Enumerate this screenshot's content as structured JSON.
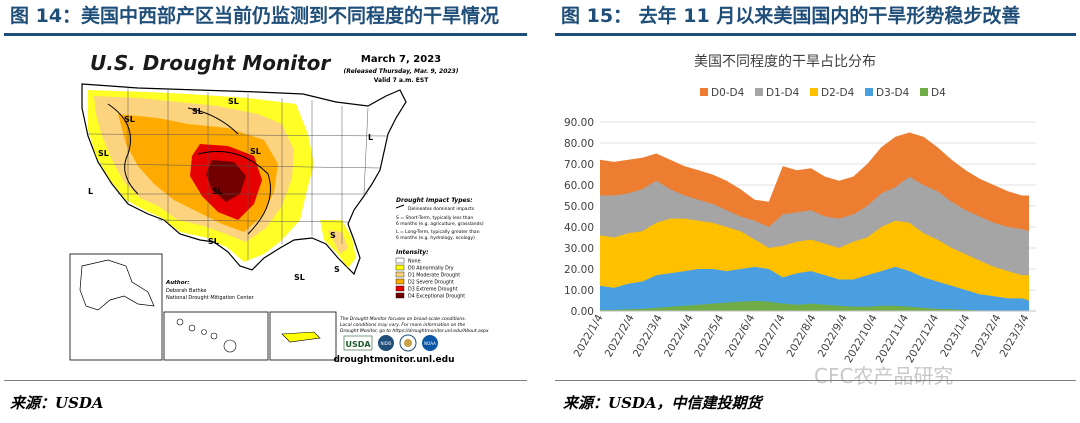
{
  "figure14": {
    "title": "图 14：美国中西部产区当前仍监测到不同程度的干旱情况",
    "source": "来源：USDA",
    "map": {
      "heading": "U.S. Drought Monitor",
      "date": "March 7, 2023",
      "released": "(Released Thursday, Mar. 9, 2023)",
      "valid": "Valid 7 a.m. EST",
      "impact_title": "Drought Impact Types:",
      "impact_items": [
        "Delineates dominant impacts",
        "S = Short-Term, typically less than",
        "6 months (e.g. agriculture, grasslands)",
        "L = Long-Term, typically greater than",
        "6 months (e.g. hydrology, ecology)"
      ],
      "intensity_title": "Intensity:",
      "intensity_items": [
        {
          "label": "None",
          "color": "#ffffff"
        },
        {
          "label": "D0 Abnormally Dry",
          "color": "#ffff00"
        },
        {
          "label": "D1 Moderate Drought",
          "color": "#fcd37f"
        },
        {
          "label": "D2 Severe Drought",
          "color": "#ffaa00"
        },
        {
          "label": "D3 Extreme Drought",
          "color": "#e60000"
        },
        {
          "label": "D4 Exceptional Drought",
          "color": "#730000"
        }
      ],
      "notes": [
        "The Drought Monitor focuses on broad-scale conditions.",
        "Local conditions may vary. For more information on the",
        "Drought Monitor, go to https://droughtmonitor.unl.edu/About.aspx"
      ],
      "author_label": "Author:",
      "author_name": "Deborah Bathke",
      "author_org": "National Drought Mitigation Center",
      "region_labels": [
        "SL",
        "SL",
        "SL",
        "SL",
        "SL",
        "SL",
        "SL",
        "L",
        "S",
        "S",
        "SL",
        "L"
      ],
      "logos": [
        "USDA",
        "NIDIS",
        "NOAA"
      ],
      "website": "droughtmonitor.unl.edu"
    }
  },
  "figure15": {
    "title": "图 15：  去年 11 月以来美国国内的干旱形势稳步改善",
    "source": "来源：USDA，中信建投期货",
    "chart_data": {
      "type": "area",
      "title": "美国不同程度的干旱占比分布",
      "legend_position": "top",
      "grid": true,
      "ylim": [
        0,
        90
      ],
      "yticks": [
        "0.00",
        "10.00",
        "20.00",
        "30.00",
        "40.00",
        "50.00",
        "60.00",
        "70.00",
        "80.00",
        "90.00"
      ],
      "xtick_labels": [
        "2022/1/4",
        "2022/2/4",
        "2022/3/4",
        "2022/4/4",
        "2022/5/4",
        "2022/6/4",
        "2022/7/4",
        "2022/8/4",
        "2022/9/4",
        "2022/10/4",
        "2022/11/4",
        "2022/12/4",
        "2023/1/4",
        "2023/2/4",
        "2023/3/4"
      ],
      "x": [
        "2022-01-04",
        "2022-01-18",
        "2022-02-01",
        "2022-02-15",
        "2022-03-01",
        "2022-03-15",
        "2022-03-29",
        "2022-04-12",
        "2022-04-26",
        "2022-05-10",
        "2022-05-24",
        "2022-06-07",
        "2022-06-21",
        "2022-07-05",
        "2022-07-19",
        "2022-08-02",
        "2022-08-16",
        "2022-08-30",
        "2022-09-13",
        "2022-09-27",
        "2022-10-11",
        "2022-10-25",
        "2022-11-08",
        "2022-11-22",
        "2022-12-06",
        "2022-12-20",
        "2023-01-03",
        "2023-01-17",
        "2023-01-31",
        "2023-02-14",
        "2023-02-28",
        "2023-03-07"
      ],
      "series": [
        {
          "name": "D0-D4",
          "color": "#ed7d31",
          "values": [
            72,
            71,
            72,
            73,
            75,
            72,
            69,
            67,
            65,
            62,
            58,
            53,
            52,
            69,
            67,
            68,
            64,
            62,
            64,
            70,
            78,
            83,
            85,
            83,
            78,
            72,
            67,
            63,
            60,
            57,
            55,
            55
          ]
        },
        {
          "name": "D1-D4",
          "color": "#a5a5a5",
          "values": [
            55,
            55,
            56,
            58,
            62,
            58,
            55,
            53,
            51,
            48,
            45,
            43,
            40,
            46,
            47,
            48,
            45,
            44,
            46,
            50,
            56,
            59,
            64,
            60,
            57,
            52,
            48,
            45,
            42,
            40,
            39,
            38
          ]
        },
        {
          "name": "D2-D4",
          "color": "#ffc000",
          "values": [
            36,
            35,
            37,
            38,
            42,
            44,
            44,
            43,
            42,
            40,
            38,
            34,
            30,
            31,
            33,
            34,
            32,
            30,
            33,
            35,
            40,
            43,
            42,
            37,
            34,
            30,
            27,
            24,
            21,
            19,
            17,
            17
          ]
        },
        {
          "name": "D3-D4",
          "color": "#4a9fe0",
          "values": [
            12,
            11,
            13,
            14,
            17,
            18,
            19,
            20,
            20,
            19,
            20,
            21,
            20,
            16,
            18,
            19,
            17,
            15,
            15,
            17,
            19,
            21,
            19,
            16,
            14,
            12,
            10,
            8,
            7,
            6,
            6,
            5
          ]
        },
        {
          "name": "D4",
          "color": "#70ad47",
          "values": [
            0.5,
            0.5,
            0.8,
            1.0,
            1.5,
            2.0,
            2.5,
            3.0,
            3.5,
            4.0,
            4.5,
            4.8,
            4.5,
            3.5,
            3.0,
            3.5,
            3.0,
            2.5,
            2.0,
            2.0,
            2.5,
            2.5,
            2.0,
            1.5,
            1.0,
            0.8,
            0.5,
            0.3,
            0.2,
            0.1,
            0.1,
            0.1
          ]
        }
      ]
    }
  },
  "watermark": "CFC农产品研究"
}
